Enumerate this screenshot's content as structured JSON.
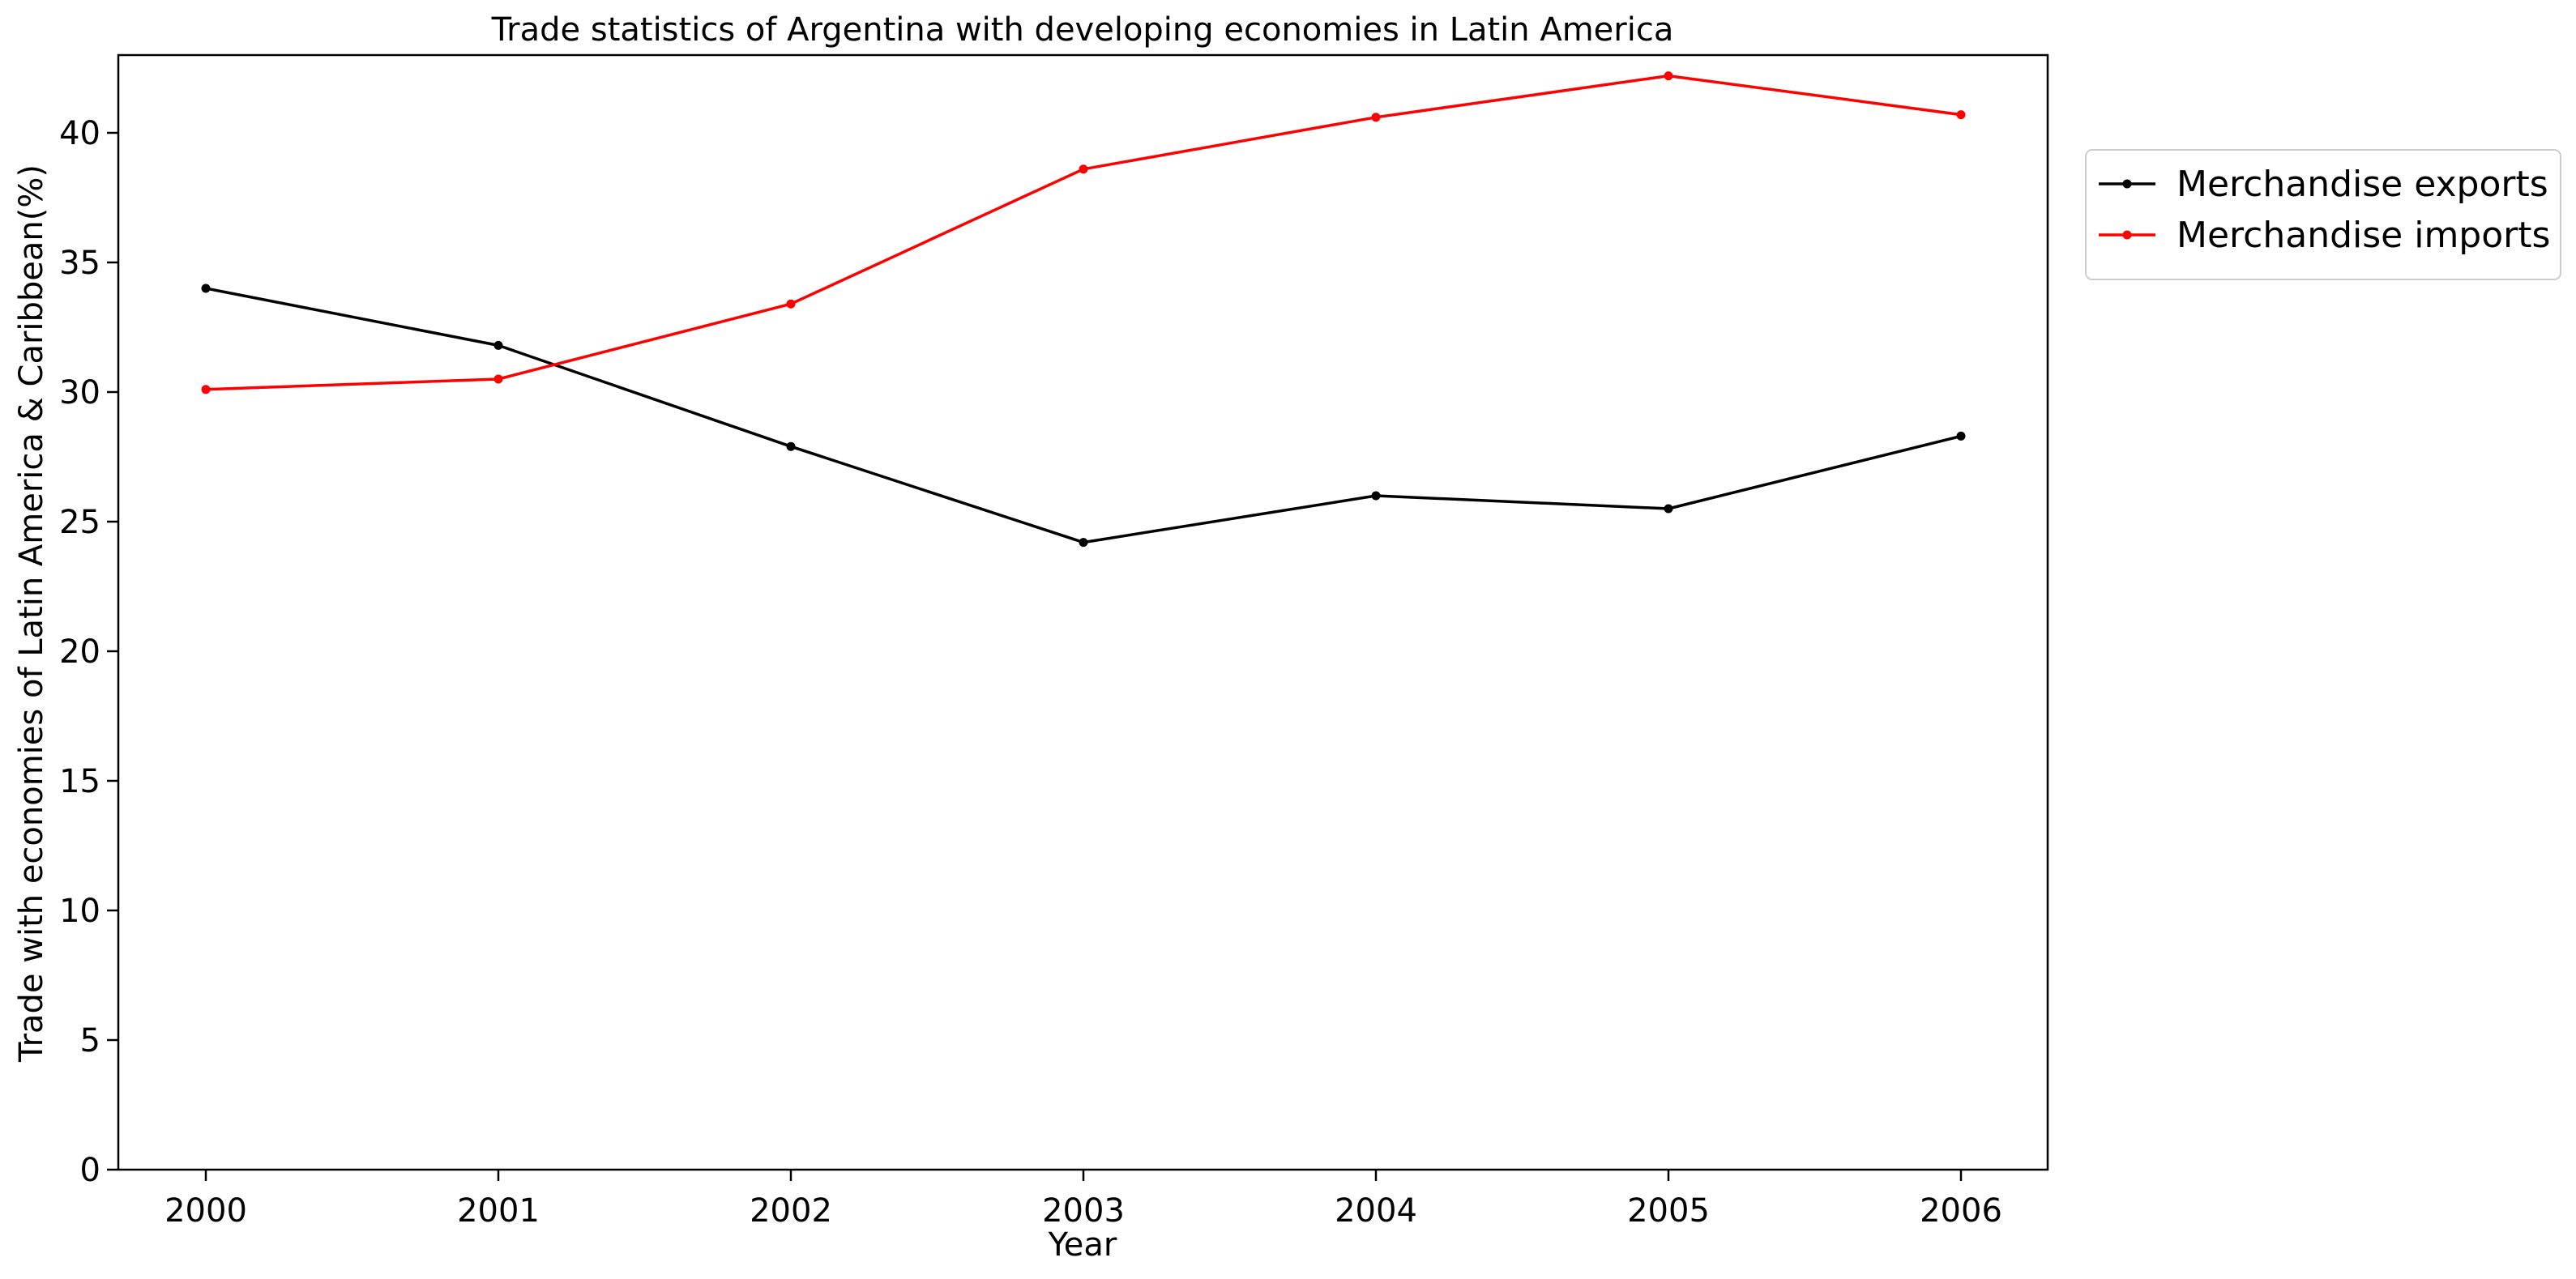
{
  "chart_data": {
    "type": "line",
    "title": "Trade statistics of Argentina with developing economies in Latin America",
    "xlabel": "Year",
    "ylabel": "Trade with economies of Latin America & Caribbean(%)",
    "x": [
      "2000",
      "2001",
      "2002",
      "2003",
      "2004",
      "2005",
      "2006"
    ],
    "ylim": [
      0,
      43
    ],
    "yticks": [
      0,
      5,
      10,
      15,
      20,
      25,
      30,
      35,
      40
    ],
    "grid": false,
    "legend_position": "outside-top-right",
    "series": [
      {
        "name": "Merchandise exports",
        "color": "#000000",
        "values": [
          34.0,
          31.8,
          27.9,
          24.2,
          26.0,
          25.5,
          28.3
        ]
      },
      {
        "name": "Merchandise imports",
        "color": "#ff0000",
        "values": [
          30.1,
          30.5,
          33.4,
          38.6,
          40.6,
          42.2,
          40.7
        ]
      }
    ]
  }
}
